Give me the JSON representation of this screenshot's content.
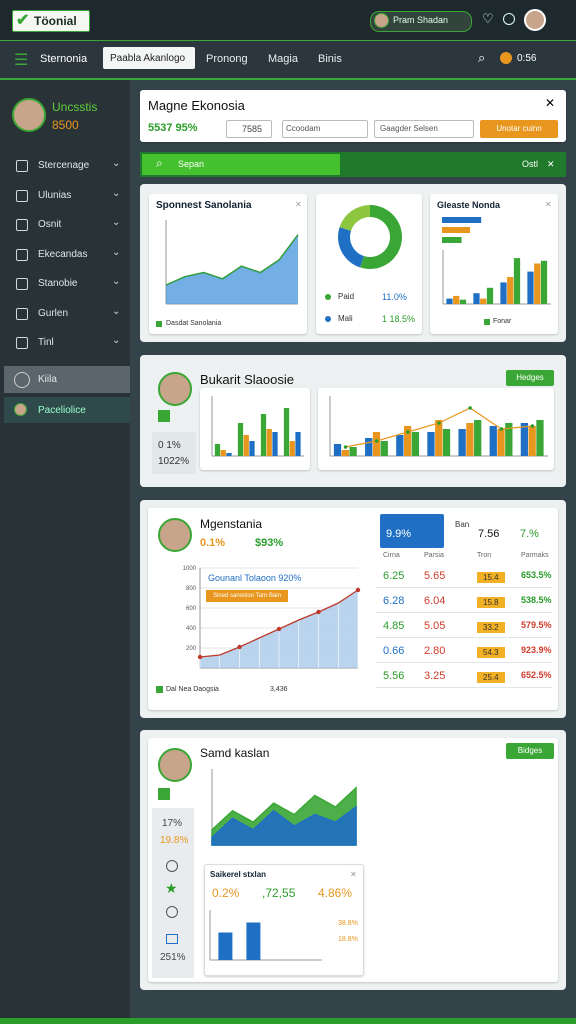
{
  "topbar": {
    "logo": "Töonial",
    "user": "Pram Shadan"
  },
  "nav": {
    "active": "Sternonia",
    "tabs": [
      "Paabla Akanlogo",
      "Pronong",
      "Magia",
      "Binis"
    ],
    "badge": "0:56"
  },
  "sidebar": {
    "name": "Uncsstis",
    "score": "8500",
    "items": [
      "Stercenage",
      "Ulunias",
      "Osnit",
      "Ekecandas",
      "Stanobie",
      "Gurlen",
      "Tinl"
    ],
    "selected": "Kiila",
    "sub": "Paceliolice"
  },
  "header_panel": {
    "title": "Magne Ekonosia",
    "stat": "5537 95%",
    "chip": "7585",
    "select1": "Ccoodam",
    "select2": "Gaagder Selsen",
    "button": "Unotar cuinn"
  },
  "search": {
    "placeholder": "Sepan",
    "right": "Ostl"
  },
  "overview": {
    "area": {
      "title": "Sponnest Sanolania",
      "legend": "Dasdat Sanolania",
      "color": "#5aa0e0",
      "line": "#2e9e3e",
      "ylim": [
        0,
        80
      ],
      "values": [
        18,
        26,
        30,
        24,
        36,
        30,
        42,
        66
      ]
    },
    "donut": {
      "colors": [
        "#3aa635",
        "#1f6fc4",
        "#8dc63f"
      ],
      "values": [
        55,
        25,
        20
      ],
      "legend": [
        {
          "label": "Paid",
          "value": "11.0%"
        },
        {
          "label": "Mali",
          "value": "1 18.5%"
        }
      ]
    },
    "bars": {
      "title": "Gleaste Nonda",
      "legend": "Fonar",
      "hbars": {
        "colors": [
          "#1f6fc4",
          "#e8961e",
          "#3aa635"
        ],
        "xlim": [
          0,
          100
        ],
        "values": [
          70,
          50,
          35
        ]
      },
      "ylim": [
        0,
        100
      ],
      "series": [
        {
          "color": "#1f6fc4",
          "values": [
            10,
            20,
            40,
            60
          ]
        },
        {
          "color": "#e8961e",
          "values": [
            15,
            10,
            50,
            75
          ]
        },
        {
          "color": "#3aa635",
          "values": [
            8,
            30,
            85,
            80
          ]
        }
      ]
    }
  },
  "trends": {
    "title": "Bukarit Slaoosie",
    "button": "Hedges",
    "stat1": "0 1%",
    "stat2": "1022%",
    "chart_a": {
      "ylim": [
        0,
        100
      ],
      "series": [
        {
          "color": "#3aa635",
          "values": [
            20,
            55,
            70,
            80
          ]
        },
        {
          "color": "#e8961e",
          "values": [
            10,
            35,
            45,
            25
          ]
        },
        {
          "color": "#1f6fc4",
          "values": [
            5,
            25,
            40,
            40
          ]
        }
      ]
    },
    "chart_b": {
      "ylim": [
        0,
        100
      ],
      "line_color": "#e8961e",
      "line": [
        15,
        25,
        40,
        55,
        80,
        45,
        50
      ],
      "series": [
        {
          "color": "#1f6fc4",
          "values": [
            20,
            30,
            35,
            40,
            45,
            50,
            55
          ]
        },
        {
          "color": "#e8961e",
          "values": [
            10,
            40,
            50,
            60,
            55,
            45,
            50
          ]
        },
        {
          "color": "#3aa635",
          "values": [
            15,
            25,
            40,
            45,
            60,
            55,
            60
          ]
        }
      ]
    }
  },
  "growth": {
    "title": "Mgenstania",
    "stat1": "0.1%",
    "stat2": "$93%",
    "annotation": "Gounanl Tolaoon 920%",
    "banner": "Sined sanoslon Tarn Bain",
    "footer": "Dal Nea Daogsia",
    "footer_value": "3,436",
    "chart": {
      "color": "#a9c9ea",
      "line": "#c0392b",
      "ylim": [
        0,
        1000
      ],
      "yticks": [
        200,
        400,
        600,
        800,
        1000
      ],
      "values": [
        110,
        130,
        210,
        300,
        390,
        480,
        560,
        650,
        780
      ]
    },
    "table": {
      "highlight": "9.9%",
      "head": [
        "Ban",
        "7.56",
        "7.%"
      ],
      "columns": [
        "Cirna",
        "Parsia",
        "Tron",
        "Parmaks"
      ],
      "rows": [
        [
          "6.25",
          "5.65",
          "15.4",
          "653.5%"
        ],
        [
          "6.28",
          "6.04",
          "15.8",
          "538.5%"
        ],
        [
          "4.85",
          "5.05",
          "33.2",
          "579.5%"
        ],
        [
          "0.66",
          "2.80",
          "54.3",
          "923.9%"
        ],
        [
          "5.56",
          "3.25",
          "25.4",
          "652.5%"
        ]
      ]
    }
  },
  "summary": {
    "title": "Samd kaslan",
    "button": "Bidges",
    "stats": [
      "17%",
      "19.8%",
      "251%"
    ],
    "area": {
      "ylim": [
        0,
        100
      ],
      "series": [
        {
          "color": "#3aa635",
          "values": [
            20,
            45,
            30,
            55,
            40,
            65,
            50,
            75
          ]
        },
        {
          "color": "#1f6fc4",
          "values": [
            10,
            35,
            20,
            45,
            25,
            40,
            30,
            50
          ]
        }
      ]
    },
    "sub": {
      "title": "Saikerel stxlan",
      "stats": [
        "0.2%",
        ",72,55",
        "4.86%"
      ],
      "ylim": [
        0,
        100
      ],
      "color": "#1f6fc4",
      "values": [
        55,
        75
      ],
      "side": [
        "38.8%",
        "18.8%"
      ]
    }
  }
}
